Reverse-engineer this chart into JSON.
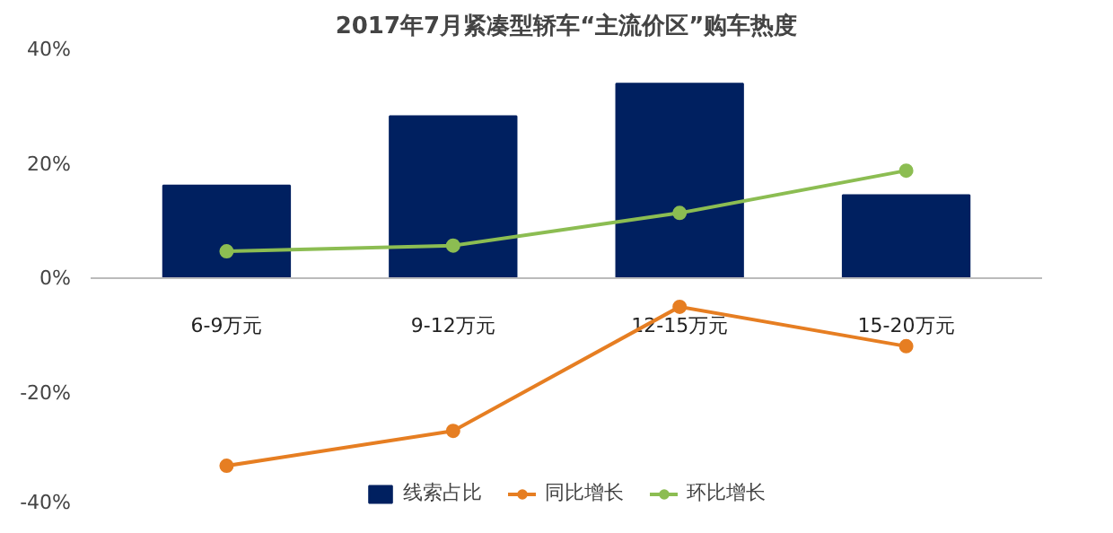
{
  "chart_data": {
    "type": "bar",
    "title": "2017年7月紧凑型轿车“主流价区”购车热度",
    "categories": [
      "6-9万元",
      "9-12万元",
      "12-15万元",
      "15-20万元"
    ],
    "series": [
      {
        "name": "线索占比",
        "color": "#002060",
        "values": [
          16.2,
          28.3,
          34.0,
          14.5
        ]
      },
      {
        "name": "同比增长",
        "type": "line",
        "color": "#e67e22",
        "values": [
          -32.8,
          -26.7,
          -5.0,
          -11.9
        ]
      },
      {
        "name": "环比增长",
        "type": "line",
        "color": "#8cbd52",
        "values": [
          4.7,
          5.7,
          11.4,
          18.8
        ]
      }
    ],
    "ylim": [
      -40,
      40
    ],
    "yticks": [
      {
        "value": -40,
        "label": "-40%"
      },
      {
        "value": -20,
        "label": "-20%"
      },
      {
        "value": 0,
        "label": "0%"
      },
      {
        "value": 20,
        "label": "20%"
      },
      {
        "value": 40,
        "label": "40%"
      }
    ],
    "grid": false,
    "legend": "bottom",
    "marker": "circle"
  }
}
